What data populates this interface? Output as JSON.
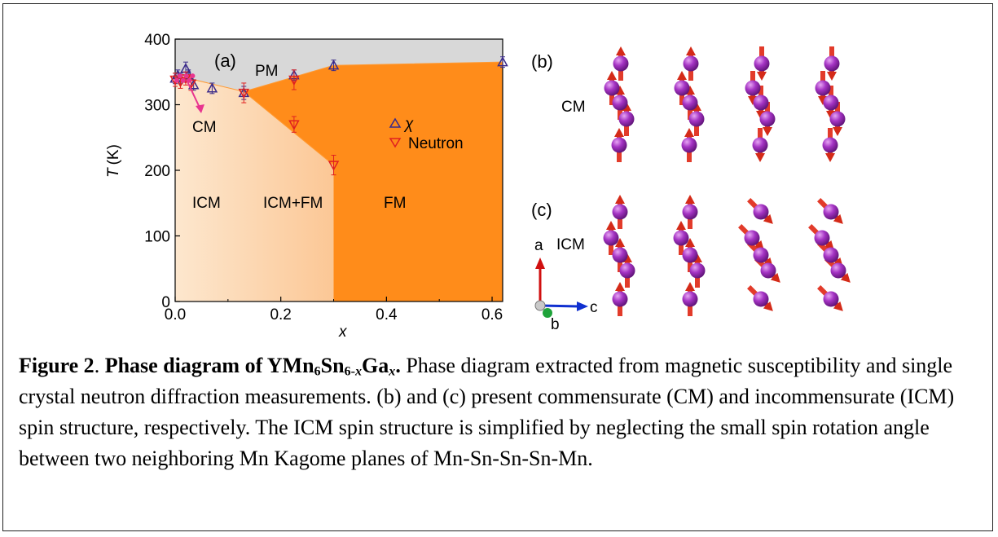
{
  "chart_data": {
    "type": "scatter",
    "xlabel": "x",
    "ylabel_italic": "T",
    "ylabel_unit": "(K)",
    "xlim": [
      0.0,
      0.62
    ],
    "ylim": [
      0,
      400
    ],
    "x_ticks": [
      0.0,
      0.2,
      0.4,
      0.6
    ],
    "x_tick_labels": [
      "0.0",
      "0.2",
      "0.4",
      "0.6"
    ],
    "y_ticks": [
      0,
      100,
      200,
      300,
      400
    ],
    "y_tick_labels": [
      "0",
      "100",
      "200",
      "300",
      "400"
    ],
    "panel_label": "(a)",
    "regions": {
      "pm": "PM",
      "cm": "CM",
      "icm": "ICM",
      "icm_fm": "ICM+FM",
      "fm": "FM"
    },
    "boundaries": {
      "pm_upper": [
        [
          0.0,
          345
        ],
        [
          0.13,
          320
        ],
        [
          0.3,
          360
        ],
        [
          0.62,
          365
        ]
      ],
      "fm_lower": [
        [
          0.13,
          320
        ],
        [
          0.3,
          208
        ]
      ]
    },
    "series": [
      {
        "name": "χ",
        "marker": "triangle-up",
        "color": "#3a2a8a",
        "x": [
          0.0,
          0.005,
          0.01,
          0.02,
          0.025,
          0.035,
          0.07,
          0.13,
          0.225,
          0.3,
          0.62
        ],
        "y": [
          340,
          345,
          340,
          355,
          345,
          330,
          325,
          318,
          345,
          360,
          365
        ],
        "err": [
          8,
          8,
          8,
          10,
          8,
          8,
          8,
          10,
          8,
          8,
          8
        ]
      },
      {
        "name": "Neutron",
        "marker": "triangle-down",
        "color": "#e02020",
        "x": [
          0.0,
          0.01,
          0.02,
          0.03,
          0.13,
          0.225,
          0.225,
          0.3
        ],
        "y": [
          338,
          335,
          340,
          332,
          318,
          338,
          270,
          208
        ],
        "err": [
          10,
          10,
          10,
          10,
          15,
          15,
          12,
          15
        ]
      }
    ]
  },
  "structure": {
    "panel_b_label": "(b)",
    "panel_c_label": "(c)",
    "cm_label": "CM",
    "icm_label": "ICM",
    "axis_a": "a",
    "axis_b": "b",
    "axis_c": "c"
  },
  "caption": {
    "fig_label": "Figure 2",
    "title_pre": "Phase diagram of YMn",
    "sub_6": "6",
    "title_sn": "Sn",
    "sub_6x": "6-",
    "sub_x_italic": "x",
    "title_ga": "Ga",
    "title_x_italic": "x",
    "title_end": ".",
    "body": "Phase diagram extracted from magnetic susceptibility and single crystal neutron diffraction measurements. (b) and (c) present commensurate (CM) and incommensurate (ICM) spin structure, respectively. The ICM spin structure is simplified by neglecting the small spin rotation angle between two neighboring Mn Kagome planes of Mn-Sn-Sn-Sn-Mn."
  },
  "colors": {
    "pm_region": "#d8d8d8",
    "fm_region": "#ff8c1a",
    "icm_region_light": "#fde3c6",
    "arrow_red": "#e23b2a",
    "atom_purple": "#9b2fb8",
    "axis_green": "#1ea33a",
    "axis_blue": "#1030d0",
    "cm_arrow_magenta": "#e8358f"
  }
}
